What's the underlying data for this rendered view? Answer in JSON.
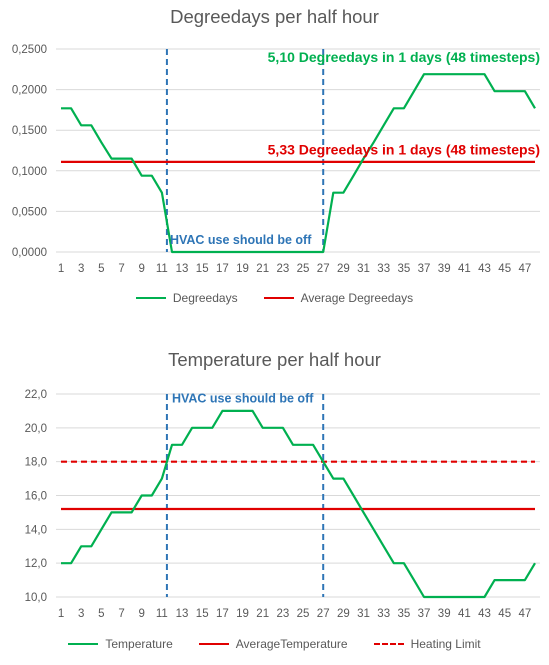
{
  "chart_data": [
    {
      "type": "line",
      "title": "Degreedays per half hour",
      "x": [
        1,
        2,
        3,
        4,
        5,
        6,
        7,
        8,
        9,
        10,
        11,
        12,
        13,
        14,
        15,
        16,
        17,
        18,
        19,
        20,
        21,
        22,
        23,
        24,
        25,
        26,
        27,
        28,
        29,
        30,
        31,
        32,
        33,
        34,
        35,
        36,
        37,
        38,
        39,
        40,
        41,
        42,
        43,
        44,
        45,
        46,
        47,
        48
      ],
      "x_tick_labels": [
        "1",
        "3",
        "5",
        "7",
        "9",
        "11",
        "13",
        "15",
        "17",
        "19",
        "21",
        "23",
        "25",
        "27",
        "29",
        "31",
        "33",
        "35",
        "37",
        "39",
        "41",
        "43",
        "45",
        "47"
      ],
      "ylim": [
        0,
        0.25
      ],
      "y_tick_labels": [
        "0,0000",
        "0,0500",
        "0,1000",
        "0,1500",
        "0,2000",
        "0,2500"
      ],
      "grid": true,
      "legend_position": "bottom",
      "series": [
        {
          "name": "Degreedays",
          "color": "#00B050",
          "style": "solid",
          "values": [
            0.177,
            0.177,
            0.156,
            0.156,
            0.135,
            0.115,
            0.115,
            0.115,
            0.094,
            0.094,
            0.073,
            0,
            0,
            0,
            0,
            0,
            0,
            0,
            0,
            0,
            0,
            0,
            0,
            0,
            0,
            0,
            0,
            0.073,
            0.073,
            0.094,
            0.115,
            0.135,
            0.156,
            0.177,
            0.177,
            0.198,
            0.219,
            0.219,
            0.219,
            0.219,
            0.219,
            0.219,
            0.219,
            0.198,
            0.198,
            0.198,
            0.198,
            0.177
          ]
        },
        {
          "name": "Average Degreedays",
          "color": "#E00000",
          "style": "solid",
          "values": [
            0.111,
            0.111,
            0.111,
            0.111,
            0.111,
            0.111,
            0.111,
            0.111,
            0.111,
            0.111,
            0.111,
            0.111,
            0.111,
            0.111,
            0.111,
            0.111,
            0.111,
            0.111,
            0.111,
            0.111,
            0.111,
            0.111,
            0.111,
            0.111,
            0.111,
            0.111,
            0.111,
            0.111,
            0.111,
            0.111,
            0.111,
            0.111,
            0.111,
            0.111,
            0.111,
            0.111,
            0.111,
            0.111,
            0.111,
            0.111,
            0.111,
            0.111,
            0.111,
            0.111,
            0.111,
            0.111,
            0.111,
            0.111
          ]
        }
      ],
      "vlines": [
        11.5,
        27
      ],
      "vline_color": "#2E75B6",
      "annotations": [
        {
          "text": "5,10  Degreedays in 1 days (48 timesteps)",
          "color": "#00B050",
          "anchor_x": 48.5,
          "anchor_y": 0.234,
          "align": "end"
        },
        {
          "text": "5,33  Degreedays in 1 days (48 timesteps)",
          "color": "#E00000",
          "anchor_x": 48.5,
          "anchor_y": 0.12,
          "align": "end"
        },
        {
          "text": "HVAC use should be off",
          "color": "#2E75B6",
          "anchor_x": 11.8,
          "anchor_y": 0.01,
          "align": "start"
        }
      ]
    },
    {
      "type": "line",
      "title": "Temperature per half hour",
      "x": [
        1,
        2,
        3,
        4,
        5,
        6,
        7,
        8,
        9,
        10,
        11,
        12,
        13,
        14,
        15,
        16,
        17,
        18,
        19,
        20,
        21,
        22,
        23,
        24,
        25,
        26,
        27,
        28,
        29,
        30,
        31,
        32,
        33,
        34,
        35,
        36,
        37,
        38,
        39,
        40,
        41,
        42,
        43,
        44,
        45,
        46,
        47,
        48
      ],
      "x_tick_labels": [
        "1",
        "3",
        "5",
        "7",
        "9",
        "11",
        "13",
        "15",
        "17",
        "19",
        "21",
        "23",
        "25",
        "27",
        "29",
        "31",
        "33",
        "35",
        "37",
        "39",
        "41",
        "43",
        "45",
        "47"
      ],
      "ylim": [
        10,
        22
      ],
      "y_tick_labels": [
        "10,0",
        "12,0",
        "14,0",
        "16,0",
        "18,0",
        "20,0",
        "22,0"
      ],
      "grid": true,
      "legend_position": "bottom",
      "series": [
        {
          "name": "Temperature",
          "color": "#00B050",
          "style": "solid",
          "values": [
            12,
            12,
            13,
            13,
            14,
            15,
            15,
            15,
            16,
            16,
            17,
            19,
            19,
            20,
            20,
            20,
            21,
            21,
            21,
            21,
            20,
            20,
            20,
            19,
            19,
            19,
            18,
            17,
            17,
            16,
            15,
            14,
            13,
            12,
            12,
            11,
            10,
            10,
            10,
            10,
            10,
            10,
            10,
            11,
            11,
            11,
            11,
            12
          ]
        },
        {
          "name": "AverageTemperature",
          "color": "#E00000",
          "style": "solid",
          "values": [
            15.2,
            15.2,
            15.2,
            15.2,
            15.2,
            15.2,
            15.2,
            15.2,
            15.2,
            15.2,
            15.2,
            15.2,
            15.2,
            15.2,
            15.2,
            15.2,
            15.2,
            15.2,
            15.2,
            15.2,
            15.2,
            15.2,
            15.2,
            15.2,
            15.2,
            15.2,
            15.2,
            15.2,
            15.2,
            15.2,
            15.2,
            15.2,
            15.2,
            15.2,
            15.2,
            15.2,
            15.2,
            15.2,
            15.2,
            15.2,
            15.2,
            15.2,
            15.2,
            15.2,
            15.2,
            15.2,
            15.2,
            15.2
          ]
        },
        {
          "name": "Heating Limit",
          "color": "#E00000",
          "style": "dashed",
          "values": [
            18,
            18,
            18,
            18,
            18,
            18,
            18,
            18,
            18,
            18,
            18,
            18,
            18,
            18,
            18,
            18,
            18,
            18,
            18,
            18,
            18,
            18,
            18,
            18,
            18,
            18,
            18,
            18,
            18,
            18,
            18,
            18,
            18,
            18,
            18,
            18,
            18,
            18,
            18,
            18,
            18,
            18,
            18,
            18,
            18,
            18,
            18,
            18
          ]
        }
      ],
      "vlines": [
        11.5,
        27
      ],
      "vline_color": "#2E75B6",
      "annotations": [
        {
          "text": "HVAC use should be off",
          "color": "#2E75B6",
          "anchor_x": 12.0,
          "anchor_y": 21.5,
          "align": "start"
        }
      ]
    }
  ]
}
